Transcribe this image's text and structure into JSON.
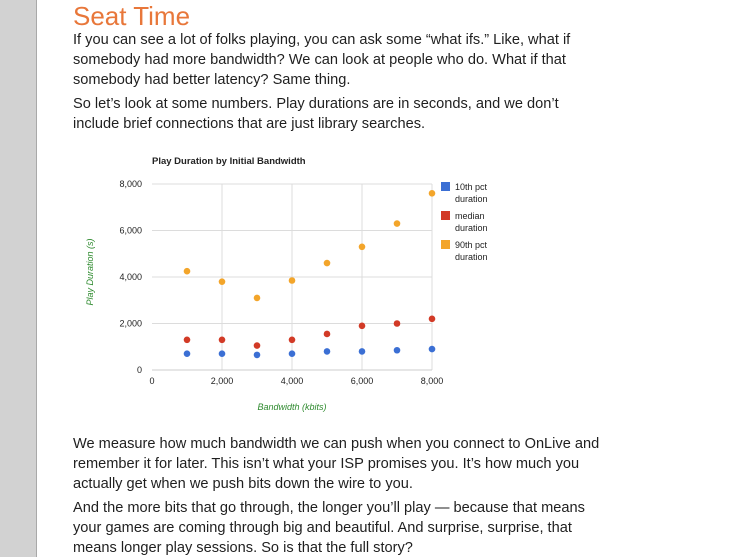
{
  "article": {
    "heading": "Seat Time",
    "paragraphs": [
      "If you can see a lot of folks playing, you can ask some “what ifs.” Like, what if somebody had more bandwidth? We can look at people who do. What if that somebody had better latency? Same thing.",
      "So let’s look at some numbers. Play durations are in seconds, and we don’t include brief connections that are just library searches.",
      "We measure how much bandwidth we can push when you connect to OnLive and remember it for later. This isn’t what your ISP promises you. It’s how much you actually get when we push bits down the wire to you.",
      "And the more bits that go through, the longer you’ll play — because that means your games are coming through big and beautiful. And surprise, surprise, that means longer play sessions. So is that the full story?"
    ]
  },
  "chart_data": {
    "type": "scatter",
    "title": "Play Duration by Initial Bandwidth",
    "xlabel": "Bandwidth (kbits)",
    "ylabel": "Play Duration (s)",
    "xlim": [
      0,
      8000
    ],
    "ylim": [
      0,
      8000
    ],
    "x_ticks": [
      "0",
      "2,000",
      "4,000",
      "6,000",
      "8,000"
    ],
    "y_ticks": [
      "0",
      "2,000",
      "4,000",
      "6,000",
      "8,000"
    ],
    "grid": true,
    "legend_position": "right",
    "x": [
      1000,
      2000,
      3000,
      4000,
      5000,
      6000,
      7000,
      8000
    ],
    "series": [
      {
        "name": "10th pct duration",
        "color": "#3b6fd4",
        "values": [
          700,
          700,
          650,
          700,
          800,
          800,
          850,
          900
        ]
      },
      {
        "name": "median duration",
        "color": "#d23a26",
        "values": [
          1300,
          1300,
          1050,
          1300,
          1550,
          1900,
          2000,
          2200
        ]
      },
      {
        "name": "90th pct duration",
        "color": "#f3a52a",
        "values": [
          4250,
          3800,
          3100,
          3850,
          4600,
          5300,
          6300,
          7600
        ]
      }
    ]
  }
}
